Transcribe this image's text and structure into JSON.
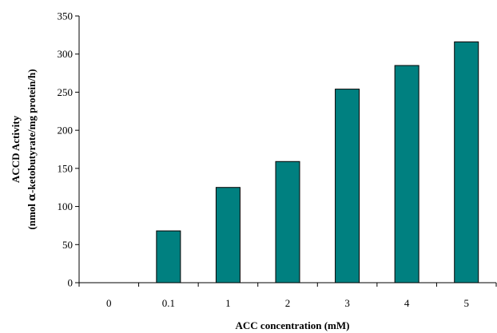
{
  "chart_data": {
    "type": "bar",
    "categories": [
      "0",
      "0.1",
      "1",
      "2",
      "3",
      "4",
      "5"
    ],
    "values": [
      0,
      68,
      125,
      159,
      254,
      285,
      316
    ],
    "xlabel": "ACC concentration (mM)",
    "ylabel_line1": "ACCD Activity",
    "ylabel_line2_prefix": "(nmol ",
    "ylabel_line2_symbol": "α",
    "ylabel_line2_suffix": "-ketobutyrate/mg protein/h)",
    "ylim": [
      0,
      350
    ],
    "yticks": [
      "0",
      "50",
      "100",
      "150",
      "200",
      "250",
      "300",
      "350"
    ],
    "grid": false,
    "legend": "none",
    "bar_color": "#008080"
  }
}
